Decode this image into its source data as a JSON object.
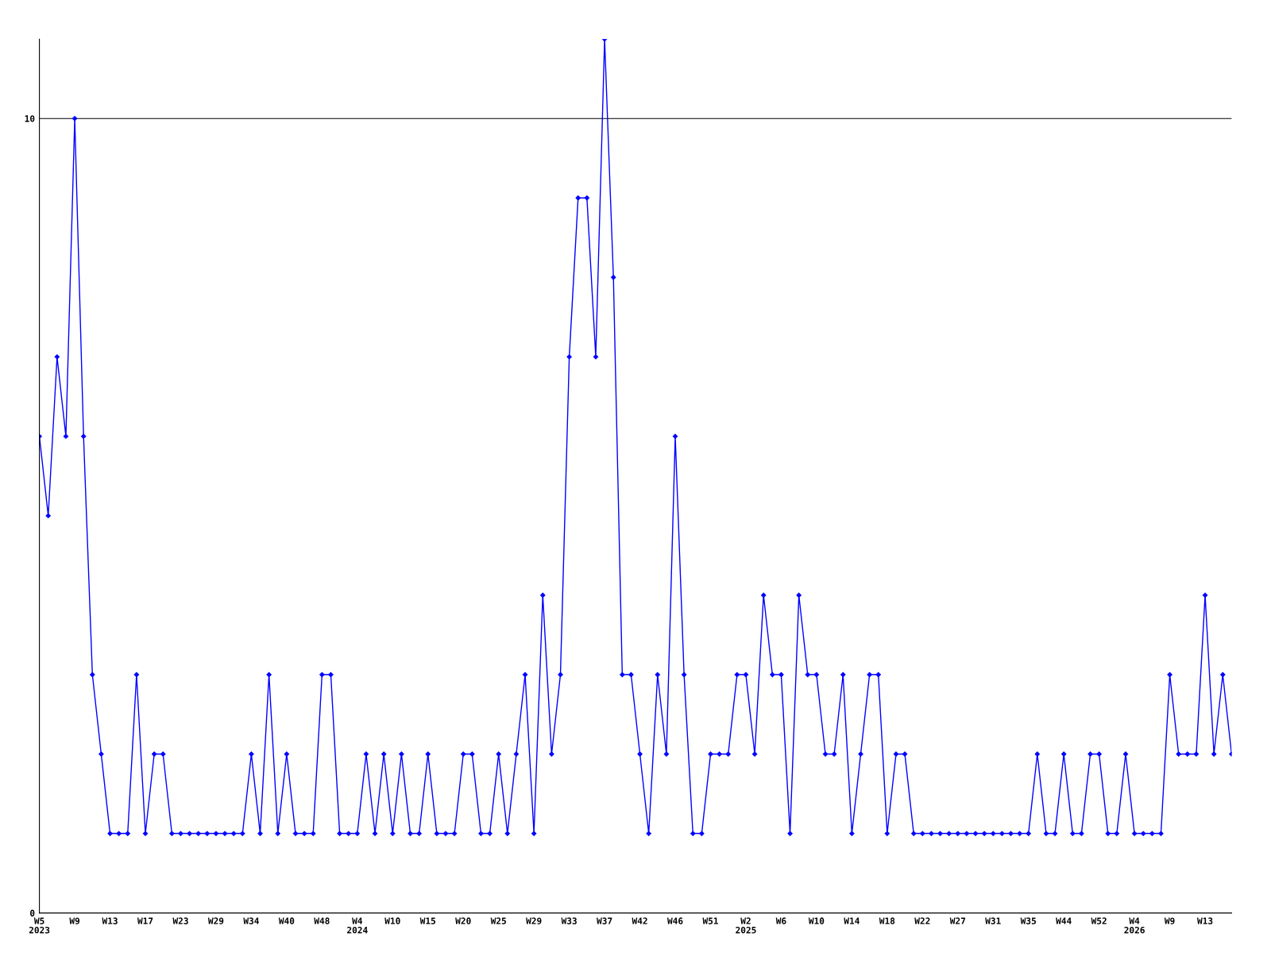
{
  "chart_data": {
    "type": "line",
    "categories": [
      "W5\n2023",
      null,
      null,
      null,
      "W9",
      null,
      null,
      null,
      "W13",
      null,
      null,
      null,
      "W17",
      null,
      null,
      null,
      "W23",
      null,
      null,
      null,
      "W29",
      null,
      null,
      null,
      "W34",
      null,
      null,
      null,
      "W40",
      null,
      null,
      null,
      "W48",
      null,
      null,
      null,
      "W4\n2024",
      null,
      null,
      null,
      "W10",
      null,
      null,
      null,
      "W15",
      null,
      null,
      null,
      "W20",
      null,
      null,
      null,
      "W25",
      null,
      null,
      null,
      "W29",
      null,
      null,
      null,
      "W33",
      null,
      null,
      null,
      "W37",
      null,
      null,
      null,
      "W42",
      null,
      null,
      null,
      "W46",
      null,
      null,
      null,
      "W51",
      null,
      null,
      null,
      "W2\n2025",
      null,
      null,
      null,
      "W6",
      null,
      null,
      null,
      "W10",
      null,
      null,
      null,
      "W14",
      null,
      null,
      null,
      "W18",
      null,
      null,
      null,
      "W22",
      null,
      null,
      null,
      "W27",
      null,
      null,
      null,
      "W31",
      null,
      null,
      null,
      "W35",
      null,
      null,
      null,
      "W44",
      null,
      null,
      null,
      "W52",
      null,
      null,
      null,
      "W4\n2026",
      null,
      null,
      null,
      "W9",
      null,
      null,
      null,
      "W13",
      null,
      null,
      null
    ],
    "series": [
      {
        "color": "#0000ff",
        "values": [
          6,
          5,
          7,
          6,
          10,
          6,
          3,
          2,
          1,
          1,
          1,
          3,
          1,
          2,
          2,
          1,
          1,
          1,
          1,
          1,
          1,
          1,
          1,
          1,
          2,
          1,
          3,
          1,
          2,
          1,
          1,
          1,
          3,
          3,
          1,
          1,
          1,
          2,
          1,
          2,
          1,
          2,
          1,
          1,
          2,
          1,
          1,
          1,
          2,
          2,
          1,
          1,
          2,
          1,
          2,
          3,
          1,
          4,
          2,
          3,
          7,
          9,
          9,
          7,
          11,
          8,
          3,
          3,
          2,
          1,
          3,
          2,
          6,
          3,
          1,
          1,
          2,
          2,
          2,
          3,
          3,
          2,
          4,
          3,
          3,
          1,
          4,
          3,
          3,
          2,
          2,
          3,
          1,
          2,
          3,
          3,
          1,
          2,
          2,
          1,
          1,
          1,
          1,
          1,
          1,
          1,
          1,
          1,
          1,
          1,
          1,
          1,
          1,
          2,
          1,
          1,
          2,
          1,
          1,
          2,
          2,
          1,
          1,
          2,
          1,
          1,
          1,
          1,
          3,
          2,
          2,
          2,
          4,
          2,
          3,
          2
        ]
      }
    ],
    "ylim": [
      0,
      11
    ],
    "yticks": [
      0,
      10
    ],
    "grid": "y",
    "marker": "diamond",
    "line_style": "solid",
    "legend": false
  }
}
